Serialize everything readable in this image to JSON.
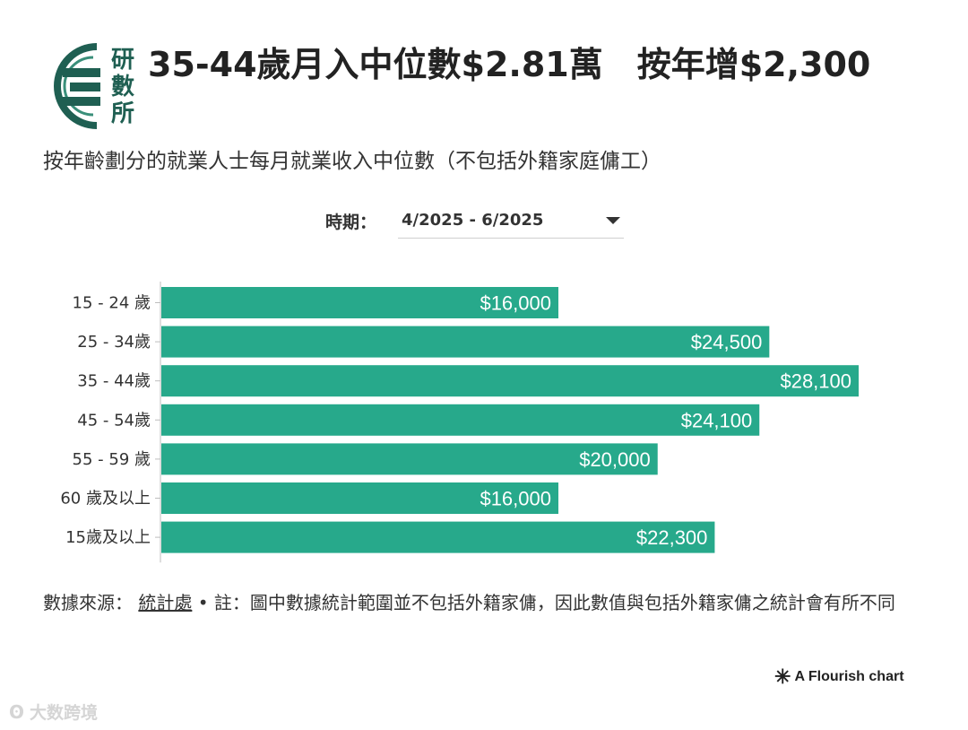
{
  "header": {
    "logo_chars": [
      "研",
      "數",
      "所"
    ],
    "title": "35-44歲月入中位數$2.81萬　按年增$2,300",
    "subtitle": "按年齡劃分的就業人士每月就業收入中位數（不包括外籍家庭傭工）"
  },
  "controls": {
    "period_label": "時期：",
    "period_value": "4/2025 - 6/2025"
  },
  "chart_data": {
    "type": "bar",
    "orientation": "horizontal",
    "categories": [
      "15 - 24 歲",
      "25 - 34歲",
      "35 - 44歲",
      "45 - 54歲",
      "55 - 59 歲",
      "60 歲及以上",
      "15歲及以上"
    ],
    "values": [
      16000,
      24500,
      28100,
      24100,
      20000,
      16000,
      22300
    ],
    "data_labels": [
      "$16,000",
      "$24,500",
      "$28,100",
      "$24,100",
      "$20,000",
      "$16,000",
      "$22,300"
    ],
    "xlim": [
      0,
      28100
    ],
    "grid": false,
    "colors": {
      "bar": "#27a98b",
      "label": "#ffffff"
    }
  },
  "footer": {
    "source_label": "數據來源：",
    "source_link": "統計處",
    "separator": "•",
    "note": "註：圖中數據統計範圍並不包括外籍家傭，因此數值與包括外籍家傭之統計會有所不同",
    "credit": "A Flourish chart"
  },
  "watermark": {
    "text": "大数跨境"
  }
}
